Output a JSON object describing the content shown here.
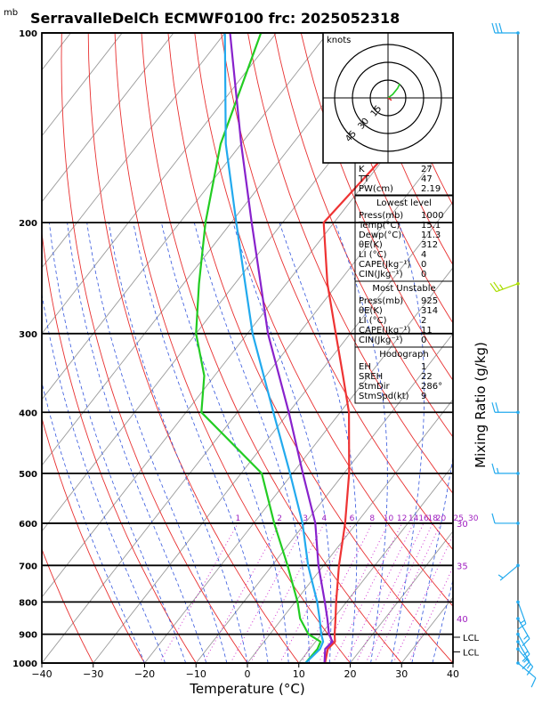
{
  "chart_data": {
    "type": "line",
    "title": "SerravalleDelCh ECMWF0100 frc: 2025052318",
    "y_unit_label": "mb",
    "xlabel": "Temperature (°C)",
    "right_axis_label": "Mixing Ratio (g/kg)",
    "xlim": [
      -40,
      40
    ],
    "ylim_mb": [
      1000,
      100
    ],
    "y_scale": "log",
    "x_ticks": [
      "−40",
      "−30",
      "−20",
      "−10",
      "0",
      "10",
      "20",
      "30",
      "40"
    ],
    "y_ticks": [
      {
        "p": 100,
        "label": "100"
      },
      {
        "p": 200,
        "label": "200"
      },
      {
        "p": 300,
        "label": "300"
      },
      {
        "p": 400,
        "label": "400"
      },
      {
        "p": 500,
        "label": "500"
      },
      {
        "p": 600,
        "label": "600"
      },
      {
        "p": 700,
        "label": "700"
      },
      {
        "p": 800,
        "label": "800"
      },
      {
        "p": 900,
        "label": "900"
      },
      {
        "p": 1000,
        "label": "1000"
      }
    ],
    "mixing_ratio_labels": [
      "1",
      "2",
      "3",
      "4",
      "6",
      "8",
      "10",
      "12",
      "14",
      "16",
      "18",
      "20",
      "25",
      "30"
    ],
    "theta_e_labels": [
      {
        "label": "30",
        "p": 600
      },
      {
        "label": "35",
        "p": 700
      },
      {
        "label": "40",
        "p": 850
      }
    ],
    "lcl_labels": [
      {
        "label": "LCL",
        "p": 910
      },
      {
        "label": "LCL",
        "p": 960
      }
    ],
    "series": [
      {
        "name": "",
        "color": "#ee3333",
        "p": [
          1000,
          950,
          925,
          900,
          850,
          800,
          700,
          600,
          500,
          400,
          350,
          300,
          250,
          200,
          150,
          100
        ],
        "T": [
          15.1,
          13.5,
          13.8,
          12.6,
          10.4,
          8.0,
          3.0,
          -2.2,
          -9.0,
          -18.3,
          -25.0,
          -32.8,
          -42.0,
          -52.0,
          -50.0,
          -50.0
        ]
      },
      {
        "name": "",
        "color": "#22cc22",
        "p": [
          1000,
          950,
          925,
          900,
          850,
          800,
          700,
          600,
          500,
          400,
          350,
          300,
          250,
          200,
          150,
          100
        ],
        "T": [
          11.3,
          11.5,
          11.0,
          7.5,
          3.5,
          0.5,
          -7.0,
          -16.0,
          -26.0,
          -47.0,
          -52.0,
          -60.0,
          -67.0,
          -75.0,
          -84.0,
          -93.0
        ]
      },
      {
        "name": "",
        "color": "#8822cc",
        "p": [
          1000,
          950,
          925,
          900,
          850,
          800,
          700,
          600,
          500,
          400,
          300,
          250,
          200,
          150,
          100
        ],
        "T": [
          15.0,
          13.0,
          13.3,
          11.5,
          8.8,
          5.8,
          -1.0,
          -8.0,
          -18.0,
          -30.0,
          -46.0,
          -55.0,
          -66.0,
          -80.0,
          -99.0
        ]
      },
      {
        "name": "",
        "color": "#22aaee",
        "p": [
          1000,
          950,
          925,
          900,
          850,
          800,
          700,
          600,
          500,
          400,
          300,
          250,
          200,
          150,
          100
        ],
        "T": [
          11.3,
          12.0,
          11.5,
          10.0,
          7.3,
          4.3,
          -3.0,
          -10.5,
          -20.5,
          -33.0,
          -49.0,
          -58.0,
          -69.0,
          -83.0,
          -100.0
        ]
      }
    ],
    "wind_barbs": [
      {
        "p": 100,
        "color": "#22aaee",
        "dir": 270,
        "speed": 30
      },
      {
        "p": 250,
        "color": "#aadd00",
        "dir": 250,
        "speed": 25
      },
      {
        "p": 400,
        "color": "#22aaee",
        "dir": 270,
        "speed": 20
      },
      {
        "p": 500,
        "color": "#22aaee",
        "dir": 270,
        "speed": 15
      },
      {
        "p": 600,
        "color": "#22aaee",
        "dir": 270,
        "speed": 10
      },
      {
        "p": 700,
        "color": "#22aaee",
        "dir": 230,
        "speed": 5
      },
      {
        "p": 800,
        "color": "#22aaee",
        "dir": 160,
        "speed": 15
      },
      {
        "p": 850,
        "color": "#22aaee",
        "dir": 150,
        "speed": 15
      },
      {
        "p": 900,
        "color": "#22aaee",
        "dir": 150,
        "speed": 15
      },
      {
        "p": 925,
        "color": "#22aaee",
        "dir": 150,
        "speed": 15
      },
      {
        "p": 950,
        "color": "#22aaee",
        "dir": 140,
        "speed": 15
      },
      {
        "p": 1000,
        "color": "#22aaee",
        "dir": 130,
        "speed": 10
      }
    ],
    "hodograph": {
      "label": "knots",
      "ring_labels": [
        "15",
        "30",
        "45"
      ],
      "green_trace": [
        [
          0,
          0
        ],
        [
          4,
          3
        ],
        [
          8,
          8
        ],
        [
          10,
          12
        ]
      ],
      "red_trace": [
        [
          0,
          0
        ],
        [
          3,
          -2
        ]
      ]
    }
  },
  "indices": {
    "top": [
      {
        "label": "K",
        "value": "27"
      },
      {
        "label": "TT",
        "value": "47"
      },
      {
        "label": "PW(cm)",
        "value": "2.19"
      }
    ],
    "lowest": {
      "header": "Lowest level",
      "rows": [
        {
          "label": "Press(mb)",
          "value": "1000"
        },
        {
          "label": "Temp(°C)",
          "value": "15.1"
        },
        {
          "label": "Dewp(°C)",
          "value": "11.3"
        },
        {
          "label": "θE(K)",
          "value": "312"
        },
        {
          "label": "LI (°C)",
          "value": "4"
        },
        {
          "label": "CAPE(Jkg⁻¹)",
          "value": "0"
        },
        {
          "label": "CIN(Jkg⁻¹)",
          "value": "0"
        }
      ]
    },
    "unstable": {
      "header": "Most Unstable",
      "rows": [
        {
          "label": "Press(mb)",
          "value": "925"
        },
        {
          "label": "θE(K)",
          "value": "314"
        },
        {
          "label": "LI (°C)",
          "value": "2"
        },
        {
          "label": "CAPE(Jkg⁻¹)",
          "value": "11"
        },
        {
          "label": "CIN(Jkg⁻¹)",
          "value": "0"
        }
      ]
    },
    "hodo": {
      "header": "Hodograph",
      "rows": [
        {
          "label": "EH",
          "value": "1"
        },
        {
          "label": "SREH",
          "value": "22"
        },
        {
          "label": "StmDir",
          "value": "286°"
        },
        {
          "label": "StmSpd(kt)",
          "value": "9"
        }
      ]
    }
  }
}
